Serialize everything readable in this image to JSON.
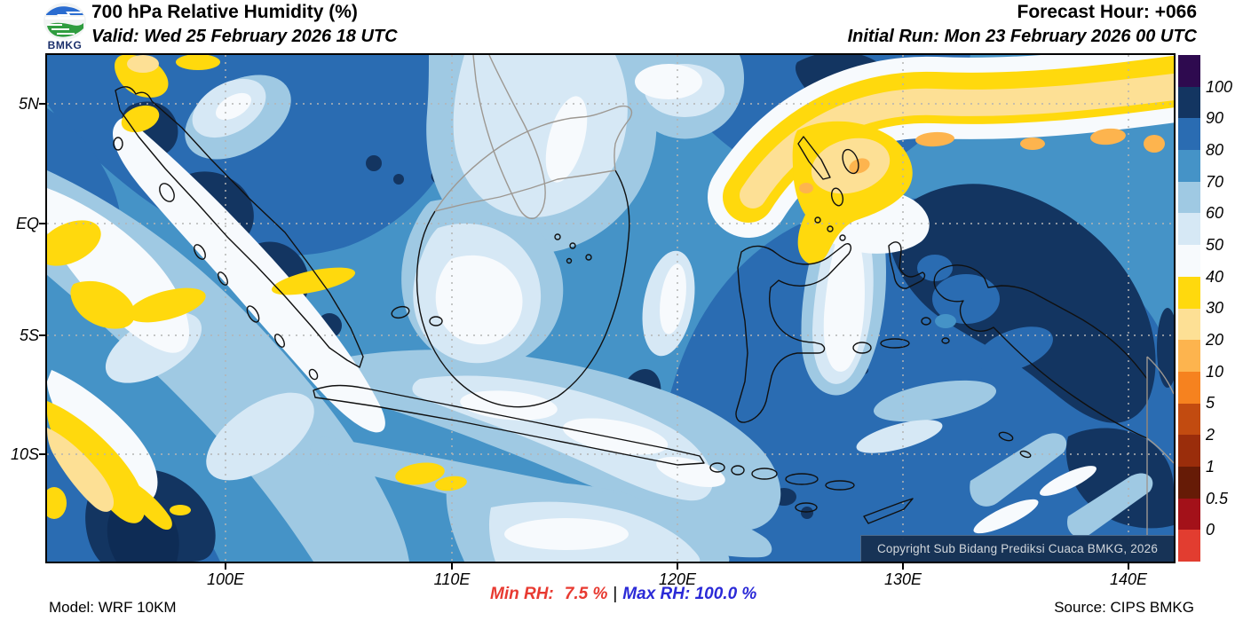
{
  "header": {
    "logo_text": "BMKG",
    "title": "700 hPa Relative Humidity (%)",
    "valid": "Valid: Wed 25 February 2026 18 UTC",
    "forecast_hour": "Forecast Hour: +066",
    "initial_run": "Initial Run: Mon 23 February 2026 00 UTC"
  },
  "map": {
    "y_ticks": [
      "5N",
      "EQ",
      "5S",
      "10S"
    ],
    "x_ticks": [
      "100E",
      "110E",
      "120E",
      "130E",
      "140E"
    ],
    "copyright": "Copyright Sub Bidang Prediksi Cuaca BMKG, 2026"
  },
  "colorbar": {
    "labels": [
      "100",
      "90",
      "80",
      "70",
      "60",
      "50",
      "40",
      "30",
      "20",
      "10",
      "5",
      "2",
      "1",
      "0.5",
      "0"
    ],
    "colors": [
      "#2e0a4f",
      "#133561",
      "#2a6cb2",
      "#4593c7",
      "#9fc9e3",
      "#d6e8f5",
      "#f7fafd",
      "#ffd90d",
      "#fde095",
      "#fdb44e",
      "#f6821f",
      "#c24b10",
      "#9a2d0b",
      "#661b06",
      "#a31119",
      "#e23d30"
    ]
  },
  "footer": {
    "model": "Model: WRF 10KM",
    "min_rh_label": "Min RH:",
    "min_rh_value": "7.5 %",
    "separator": "|",
    "max_rh_label": "Max RH:",
    "max_rh_value": "100.0 %",
    "source": "Source: CIPS BMKG"
  }
}
